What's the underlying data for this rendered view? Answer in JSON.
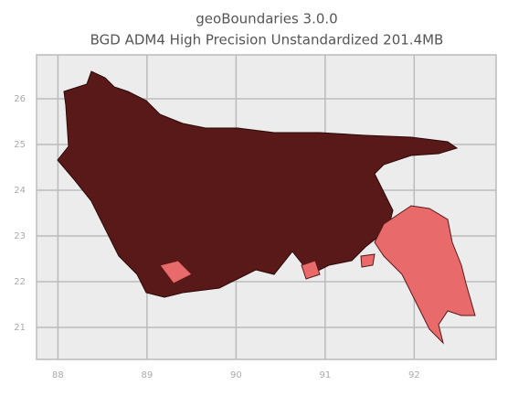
{
  "chart_data": {
    "type": "map",
    "title": "geoBoundaries 3.0.0",
    "subtitle": "BGD ADM4 High Precision Unstandardized 201.4MB",
    "xlim": [
      87.76,
      92.92
    ],
    "ylim": [
      20.3,
      26.96
    ],
    "xticks": [
      88,
      89,
      90,
      91,
      92
    ],
    "yticks": [
      21,
      22,
      23,
      24,
      25,
      26
    ],
    "grid": true
  }
}
